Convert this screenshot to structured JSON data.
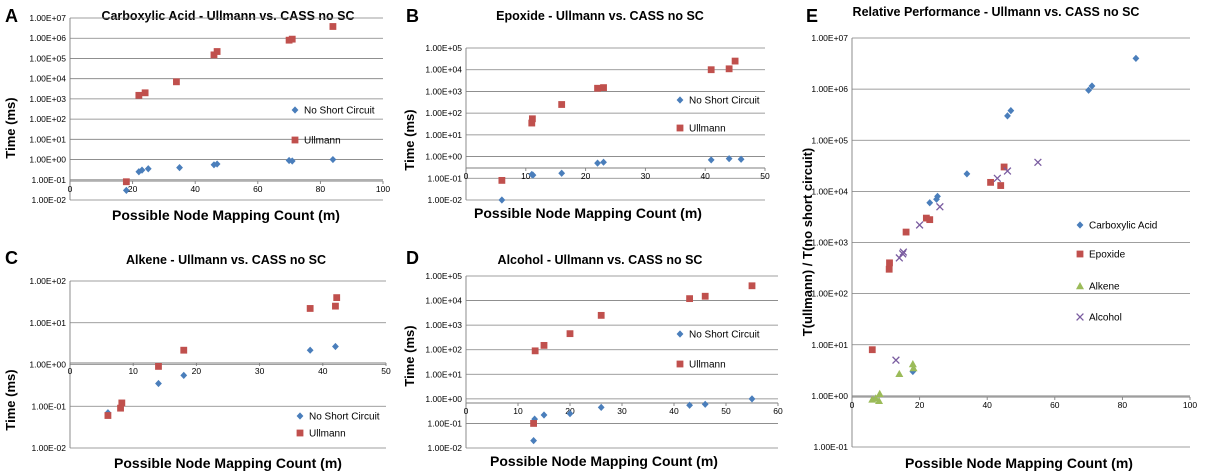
{
  "chart_data": [
    {
      "panel": "A",
      "type": "scatter",
      "title": "Carboxylic Acid - Ullmann vs. CASS no SC",
      "xlabel": "Possible Node Mapping Count (m)",
      "ylabel": "Time (ms)",
      "yscale": "log",
      "xlim": [
        0,
        100
      ],
      "ylim_exp": [
        -2,
        7
      ],
      "xticks": [
        "0",
        "20",
        "40",
        "60",
        "80",
        "100"
      ],
      "yticks": [
        "1.00E-02",
        "1.00E-01",
        "1.00E+00",
        "1.00E+01",
        "1.00E+02",
        "1.00E+03",
        "1.00E+04",
        "1.00E+05",
        "1.00E+06",
        "1.00E+07"
      ],
      "legend": "right",
      "series": [
        {
          "name": "No Short Circuit",
          "marker": "diamond",
          "color": "#4a7ebb",
          "points": [
            [
              18,
              0.03
            ],
            [
              22,
              0.25
            ],
            [
              23,
              0.3
            ],
            [
              25,
              0.35
            ],
            [
              35,
              0.4
            ],
            [
              46,
              0.55
            ],
            [
              47,
              0.6
            ],
            [
              70,
              0.9
            ],
            [
              71,
              0.85
            ],
            [
              84,
              1.0
            ]
          ]
        },
        {
          "name": "Ullmann",
          "marker": "square",
          "color": "#c0504d",
          "points": [
            [
              18,
              0.08
            ],
            [
              22,
              1500
            ],
            [
              24,
              2000
            ],
            [
              34,
              7000
            ],
            [
              46,
              150000
            ],
            [
              47,
              220000
            ],
            [
              70,
              800000
            ],
            [
              71,
              900000
            ],
            [
              84,
              3800000
            ]
          ]
        }
      ]
    },
    {
      "panel": "B",
      "type": "scatter",
      "title": "Epoxide - Ullmann vs. CASS no SC",
      "xlabel": "Possible Node Mapping Count (m)",
      "ylabel": "Time (ms)",
      "yscale": "log",
      "xlim": [
        0,
        50
      ],
      "ylim_exp": [
        -2,
        5
      ],
      "xticks": [
        "0",
        "10",
        "20",
        "30",
        "40",
        "50"
      ],
      "yticks": [
        "1.00E-02",
        "1.00E-01",
        "1.00E+00",
        "1.00E+01",
        "1.00E+02",
        "1.00E+03",
        "1.00E+04",
        "1.00E+05"
      ],
      "legend": "right",
      "series": [
        {
          "name": "No Short Circuit",
          "marker": "diamond",
          "color": "#4a7ebb",
          "points": [
            [
              6,
              0.01
            ],
            [
              11,
              0.15
            ],
            [
              11.2,
              0.14
            ],
            [
              16,
              0.17
            ],
            [
              22,
              0.5
            ],
            [
              23,
              0.55
            ],
            [
              41,
              0.7
            ],
            [
              44,
              0.8
            ],
            [
              46,
              0.75
            ]
          ]
        },
        {
          "name": "Ullmann",
          "marker": "square",
          "color": "#c0504d",
          "points": [
            [
              6,
              0.08
            ],
            [
              11,
              35
            ],
            [
              11.1,
              55
            ],
            [
              16,
              250
            ],
            [
              22,
              1400
            ],
            [
              23,
              1500
            ],
            [
              41,
              10000
            ],
            [
              44,
              11000
            ],
            [
              45,
              25000
            ]
          ]
        }
      ]
    },
    {
      "panel": "C",
      "type": "scatter",
      "title": "Alkene - Ullmann vs. CASS no SC",
      "xlabel": "Possible Node Mapping Count (m)",
      "ylabel": "Time (ms)",
      "yscale": "log",
      "xlim": [
        0,
        50
      ],
      "ylim_exp": [
        -2,
        2
      ],
      "xticks": [
        "0",
        "10",
        "20",
        "30",
        "40",
        "50"
      ],
      "yticks": [
        "1.00E-02",
        "1.00E-01",
        "1.00E+00",
        "1.00E+01",
        "1.00E+02"
      ],
      "legend": "lower-right",
      "series": [
        {
          "name": "No Short Circuit",
          "marker": "diamond",
          "color": "#4a7ebb",
          "points": [
            [
              6,
              0.07
            ],
            [
              14,
              0.35
            ],
            [
              18,
              0.55
            ],
            [
              38,
              2.2
            ],
            [
              42,
              2.7
            ]
          ]
        },
        {
          "name": "Ullmann",
          "marker": "square",
          "color": "#c0504d",
          "points": [
            [
              6,
              0.06
            ],
            [
              8,
              0.09
            ],
            [
              8.2,
              0.12
            ],
            [
              14,
              0.9
            ],
            [
              18,
              2.2
            ],
            [
              38,
              22
            ],
            [
              42,
              25
            ],
            [
              42.2,
              40
            ]
          ]
        }
      ]
    },
    {
      "panel": "D",
      "type": "scatter",
      "title": "Alcohol - Ullmann vs. CASS no SC",
      "xlabel": "Possible Node Mapping Count (m)",
      "ylabel": "Time (ms)",
      "yscale": "log",
      "xlim": [
        0,
        60
      ],
      "ylim_exp": [
        -2,
        5
      ],
      "xticks": [
        "0",
        "10",
        "20",
        "30",
        "40",
        "50",
        "60"
      ],
      "yticks": [
        "1.00E-02",
        "1.00E-01",
        "1.00E+00",
        "1.00E+01",
        "1.00E+02",
        "1.00E+03",
        "1.00E+04",
        "1.00E+05"
      ],
      "legend": "right",
      "series": [
        {
          "name": "No Short Circuit",
          "marker": "diamond",
          "color": "#4a7ebb",
          "points": [
            [
              13,
              0.02
            ],
            [
              13.2,
              0.15
            ],
            [
              15,
              0.22
            ],
            [
              20,
              0.25
            ],
            [
              26,
              0.45
            ],
            [
              43,
              0.55
            ],
            [
              46,
              0.6
            ],
            [
              55,
              1.0
            ]
          ]
        },
        {
          "name": "Ullmann",
          "marker": "square",
          "color": "#c0504d",
          "points": [
            [
              13,
              0.1
            ],
            [
              13.3,
              90
            ],
            [
              15,
              150
            ],
            [
              20,
              450
            ],
            [
              26,
              2500
            ],
            [
              43,
              12000
            ],
            [
              46,
              15000
            ],
            [
              55,
              40000
            ]
          ]
        }
      ]
    },
    {
      "panel": "E",
      "type": "scatter",
      "title": "Relative Performance - Ullmann vs. CASS no SC",
      "xlabel": "Possible Node Mapping Count (m)",
      "ylabel": "T(ullmann) / T(no short circuit)",
      "yscale": "log",
      "xlim": [
        0,
        100
      ],
      "ylim_exp": [
        -1,
        7
      ],
      "xticks": [
        "0",
        "20",
        "40",
        "60",
        "80",
        "100"
      ],
      "yticks": [
        "1.00E-01",
        "1.00E+00",
        "1.00E+01",
        "1.00E+02",
        "1.00E+03",
        "1.00E+04",
        "1.00E+05",
        "1.00E+06",
        "1.00E+07"
      ],
      "legend": "right",
      "series": [
        {
          "name": "Carboxylic Acid",
          "marker": "diamond",
          "color": "#4a7ebb",
          "points": [
            [
              18,
              3.0
            ],
            [
              23,
              6000
            ],
            [
              25,
              7000
            ],
            [
              25.3,
              8000
            ],
            [
              34,
              22000
            ],
            [
              46,
              300000
            ],
            [
              47,
              380000
            ],
            [
              70,
              950000
            ],
            [
              71,
              1150000
            ],
            [
              84,
              4000000
            ]
          ]
        },
        {
          "name": "Epoxide",
          "marker": "square",
          "color": "#c0504d",
          "points": [
            [
              6,
              8
            ],
            [
              11,
              300
            ],
            [
              11.1,
              400
            ],
            [
              16,
              1600
            ],
            [
              22,
              3000
            ],
            [
              23,
              2800
            ],
            [
              41,
              15000
            ],
            [
              44,
              13000
            ],
            [
              45,
              30000
            ]
          ]
        },
        {
          "name": "Alkene",
          "marker": "triangle",
          "color": "#9bbb59",
          "points": [
            [
              6,
              0.85
            ],
            [
              7,
              0.9
            ],
            [
              8,
              0.8
            ],
            [
              8.2,
              1.1
            ],
            [
              14,
              2.7
            ],
            [
              18,
              4.2
            ],
            [
              18.2,
              3.5
            ]
          ]
        },
        {
          "name": "Alcohol",
          "marker": "x",
          "color": "#7a5ca0",
          "points": [
            [
              13,
              5.0
            ],
            [
              14,
              500
            ],
            [
              15,
              600
            ],
            [
              15.2,
              650
            ],
            [
              20,
              2200
            ],
            [
              26,
              5000
            ],
            [
              43,
              18000
            ],
            [
              46,
              25000
            ],
            [
              55,
              37000
            ]
          ]
        }
      ]
    }
  ]
}
